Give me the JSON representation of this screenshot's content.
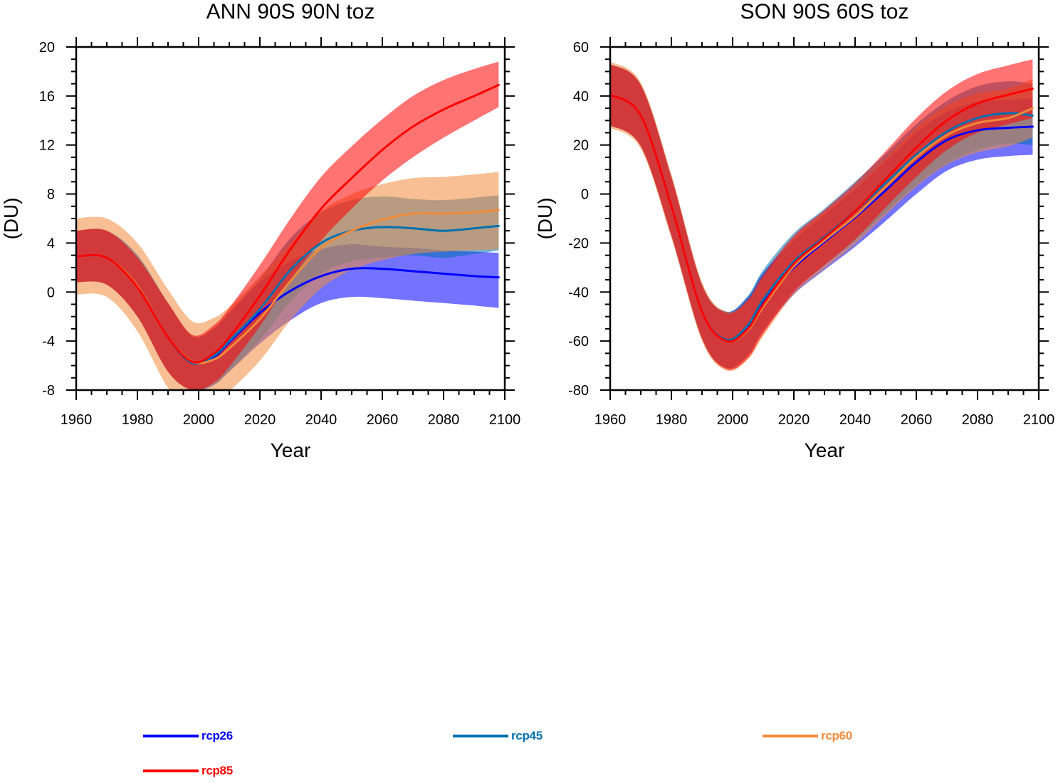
{
  "chart_data": [
    {
      "type": "line",
      "title": "ANN 90S 90N toz",
      "xlabel": "Year",
      "ylabel": "(DU)",
      "xlim": [
        1960,
        2100
      ],
      "ylim": [
        -8,
        20
      ],
      "xticks": [
        1960,
        1980,
        2000,
        2020,
        2040,
        2060,
        2080,
        2100
      ],
      "yticks": [
        -8,
        -4,
        0,
        4,
        8,
        12,
        16,
        20
      ],
      "xtick_labels": [
        "1960",
        "1980",
        "2000",
        "2020",
        "2040",
        "2060",
        "2080",
        "2100"
      ],
      "ytick_labels": [
        "-8",
        "-4",
        "0",
        "4",
        "8",
        "12",
        "16",
        "20"
      ],
      "grid": false,
      "x": [
        1960,
        1970,
        1980,
        1990,
        1998,
        2005,
        2010,
        2020,
        2030,
        2040,
        2050,
        2060,
        2070,
        2080,
        2090,
        2098
      ],
      "series": [
        {
          "name": "rcp26",
          "color": "#0000ff",
          "y": [
            2.9,
            2.8,
            0.5,
            -3.7,
            -5.8,
            -5.3,
            -4.1,
            -1.7,
            0.1,
            1.3,
            1.9,
            1.9,
            1.7,
            1.5,
            1.3,
            1.2
          ],
          "lower": [
            0.8,
            0.6,
            -2.0,
            -6.5,
            -8.0,
            -7.6,
            -6.5,
            -4.2,
            -2.3,
            -0.9,
            -0.4,
            -0.5,
            -0.7,
            -0.9,
            -1.1,
            -1.3
          ],
          "upper": [
            5.0,
            5.0,
            3.0,
            -0.9,
            -3.6,
            -3.0,
            -1.7,
            0.8,
            2.5,
            3.5,
            3.9,
            3.7,
            3.6,
            3.4,
            3.3,
            3.2
          ]
        },
        {
          "name": "rcp45",
          "color": "#0070b0",
          "y": [
            2.9,
            2.8,
            0.5,
            -3.7,
            -5.8,
            -5.2,
            -4.0,
            -1.4,
            1.8,
            4.0,
            5.0,
            5.3,
            5.2,
            5.0,
            5.2,
            5.4
          ],
          "lower": [
            0.8,
            0.6,
            -2.0,
            -6.5,
            -8.0,
            -7.5,
            -6.4,
            -3.9,
            -0.8,
            1.5,
            2.5,
            2.8,
            3.0,
            2.8,
            3.1,
            3.4
          ],
          "upper": [
            5.0,
            5.0,
            3.0,
            -0.9,
            -3.6,
            -2.9,
            -1.6,
            1.1,
            4.4,
            6.5,
            7.5,
            7.8,
            7.6,
            7.5,
            7.7,
            7.9
          ]
        },
        {
          "name": "rcp60",
          "color": "#f08a3a",
          "y": [
            2.9,
            2.8,
            0.5,
            -3.7,
            -5.7,
            -5.5,
            -4.6,
            -2.2,
            0.9,
            3.6,
            5.0,
            5.9,
            6.4,
            6.4,
            6.5,
            6.7
          ],
          "lower": [
            -0.2,
            -0.4,
            -3.2,
            -7.8,
            -9.3,
            -9.0,
            -8.1,
            -5.6,
            -2.3,
            0.3,
            1.8,
            2.6,
            3.1,
            3.3,
            3.4,
            3.5
          ],
          "upper": [
            6.0,
            6.0,
            4.0,
            0.2,
            -2.4,
            -2.1,
            -1.2,
            1.3,
            4.0,
            6.6,
            8.0,
            8.8,
            9.3,
            9.4,
            9.6,
            9.8
          ]
        },
        {
          "name": "rcp85",
          "color": "#ff0000",
          "y": [
            2.9,
            2.8,
            0.4,
            -3.7,
            -5.7,
            -5.0,
            -3.7,
            -0.3,
            3.5,
            6.8,
            9.3,
            11.6,
            13.5,
            14.9,
            16.0,
            16.9
          ],
          "lower": [
            0.8,
            0.6,
            -2.0,
            -6.5,
            -8.0,
            -7.4,
            -6.1,
            -2.8,
            1.0,
            4.2,
            6.8,
            9.1,
            11.0,
            12.6,
            14.0,
            15.1
          ],
          "upper": [
            5.0,
            5.0,
            2.8,
            -0.9,
            -3.5,
            -2.7,
            -1.3,
            2.2,
            6.0,
            9.4,
            11.9,
            14.1,
            16.0,
            17.3,
            18.2,
            18.8
          ]
        }
      ]
    },
    {
      "type": "line",
      "title": "SON 90S 60S toz",
      "xlabel": "Year",
      "ylabel": "(DU)",
      "xlim": [
        1960,
        2100
      ],
      "ylim": [
        -80,
        60
      ],
      "xticks": [
        1960,
        1980,
        2000,
        2020,
        2040,
        2060,
        2080,
        2100
      ],
      "yticks": [
        -80,
        -60,
        -40,
        -20,
        0,
        20,
        40,
        60
      ],
      "xtick_labels": [
        "1960",
        "1980",
        "2000",
        "2020",
        "2040",
        "2060",
        "2080",
        "2100"
      ],
      "ytick_labels": [
        "-80",
        "-60",
        "-40",
        "-20",
        "0",
        "20",
        "40",
        "60"
      ],
      "grid": false,
      "x": [
        1960,
        1970,
        1980,
        1990,
        1998,
        2005,
        2010,
        2020,
        2030,
        2040,
        2050,
        2060,
        2070,
        2080,
        2090,
        2098
      ],
      "series": [
        {
          "name": "rcp26",
          "color": "#0000ff",
          "y": [
            40.5,
            32.0,
            -5.0,
            -48.0,
            -59.5,
            -54.0,
            -44.0,
            -30.0,
            -19.5,
            -9.5,
            1.5,
            13.0,
            22.0,
            26.0,
            27.0,
            27.5
          ],
          "lower": [
            28.0,
            19.5,
            -17.0,
            -59.0,
            -71.0,
            -66.0,
            -56.0,
            -41.0,
            -31.0,
            -21.5,
            -11.0,
            0.0,
            9.5,
            14.0,
            15.5,
            16.0
          ],
          "upper": [
            53.0,
            44.5,
            7.0,
            -37.0,
            -48.0,
            -42.0,
            -32.0,
            -19.0,
            -8.5,
            2.0,
            13.5,
            25.0,
            33.5,
            37.5,
            38.5,
            39.0
          ]
        },
        {
          "name": "rcp45",
          "color": "#0070b0",
          "y": [
            40.5,
            32.0,
            -5.0,
            -48.0,
            -59.5,
            -53.5,
            -43.0,
            -27.5,
            -17.5,
            -7.0,
            4.5,
            16.0,
            25.5,
            31.0,
            33.0,
            32.0
          ],
          "lower": [
            28.0,
            19.5,
            -17.0,
            -59.0,
            -71.0,
            -65.5,
            -55.0,
            -39.0,
            -29.0,
            -19.0,
            -7.5,
            3.5,
            12.5,
            18.0,
            20.5,
            20.0
          ],
          "upper": [
            53.0,
            44.5,
            7.0,
            -37.0,
            -48.0,
            -41.5,
            -31.0,
            -16.0,
            -6.0,
            5.0,
            16.5,
            28.5,
            38.0,
            44.0,
            46.0,
            45.0
          ]
        },
        {
          "name": "rcp60",
          "color": "#f08a3a",
          "y": [
            40.5,
            32.0,
            -5.0,
            -48.0,
            -60.0,
            -55.5,
            -46.0,
            -29.5,
            -19.0,
            -9.0,
            3.0,
            15.0,
            24.0,
            29.0,
            31.0,
            35.0
          ],
          "lower": [
            27.0,
            18.5,
            -18.0,
            -60.0,
            -72.0,
            -67.5,
            -58.0,
            -41.0,
            -30.5,
            -20.5,
            -8.5,
            3.0,
            12.0,
            17.0,
            19.5,
            23.0
          ],
          "upper": [
            54.0,
            45.5,
            8.0,
            -36.0,
            -48.0,
            -43.5,
            -34.0,
            -18.0,
            -7.5,
            2.5,
            14.5,
            27.0,
            36.0,
            41.0,
            43.0,
            47.0
          ]
        },
        {
          "name": "rcp85",
          "color": "#ff0000",
          "y": [
            40.5,
            32.0,
            -5.0,
            -48.0,
            -60.0,
            -55.0,
            -45.0,
            -28.5,
            -18.0,
            -7.0,
            6.0,
            19.0,
            30.0,
            37.0,
            40.5,
            43.0
          ],
          "lower": [
            28.0,
            19.5,
            -17.0,
            -59.0,
            -71.5,
            -67.0,
            -57.0,
            -40.0,
            -29.0,
            -18.5,
            -5.5,
            7.0,
            18.0,
            25.0,
            28.5,
            31.0
          ],
          "upper": [
            53.0,
            44.5,
            7.0,
            -37.0,
            -48.5,
            -43.0,
            -33.0,
            -17.0,
            -6.5,
            4.5,
            17.5,
            31.0,
            42.0,
            49.0,
            52.5,
            55.0
          ]
        }
      ]
    }
  ],
  "legend": {
    "placement": "bottom",
    "items": [
      {
        "label": "rcp26",
        "color": "#0000ff"
      },
      {
        "label": "rcp45",
        "color": "#0070b0"
      },
      {
        "label": "rcp60",
        "color": "#f08a3a"
      },
      {
        "label": "rcp85",
        "color": "#ff0000"
      }
    ]
  }
}
